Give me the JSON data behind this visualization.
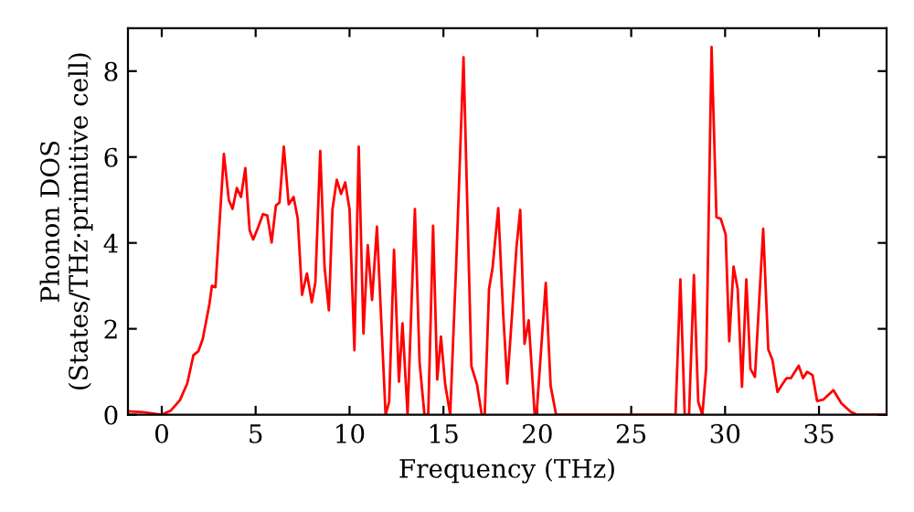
{
  "chart_data": {
    "type": "line",
    "xlabel": "Frequency (THz)",
    "ylabel": "Phonon DOS\n(States/THz·primitive cell)",
    "xlim": [
      -1.8,
      38.6
    ],
    "ylim": [
      0,
      9
    ],
    "xticks": [
      0,
      5,
      10,
      15,
      20,
      25,
      30,
      35
    ],
    "yticks": [
      0,
      2,
      4,
      6,
      8
    ],
    "grid": false,
    "series": [
      {
        "color": "#ff0000",
        "x": [
          -1.78,
          -0.97,
          0,
          0.49,
          0.97,
          1.36,
          1.69,
          1.95,
          2.18,
          2.54,
          2.67,
          2.86,
          3.31,
          3.57,
          3.77,
          4.0,
          4.22,
          4.45,
          4.68,
          4.87,
          5.13,
          5.39,
          5.62,
          5.85,
          6.08,
          6.27,
          6.5,
          6.76,
          7.02,
          7.24,
          7.47,
          7.73,
          7.99,
          8.18,
          8.44,
          8.67,
          8.9,
          9.09,
          9.32,
          9.55,
          9.77,
          10.0,
          10.26,
          10.49,
          10.74,
          10.97,
          11.2,
          11.46,
          11.92,
          12.11,
          12.37,
          12.63,
          12.82,
          13.09,
          13.48,
          13.73,
          13.99,
          14.19,
          14.45,
          14.67,
          14.87,
          15.09,
          15.36,
          15.68,
          16.07,
          16.49,
          16.79,
          17.04,
          17.2,
          17.43,
          17.62,
          17.92,
          18.18,
          18.4,
          18.66,
          18.89,
          19.09,
          19.32,
          19.54,
          19.86,
          19.96,
          20.45,
          20.71,
          21.0,
          27.36,
          27.62,
          27.85,
          28.08,
          28.34,
          28.57,
          28.79,
          28.99,
          29.28,
          29.54,
          29.77,
          30.03,
          30.22,
          30.45,
          30.67,
          30.9,
          31.13,
          31.35,
          31.59,
          32.03,
          32.3,
          32.52,
          32.79,
          33.05,
          33.27,
          33.5,
          33.92,
          34.15,
          34.37,
          34.66,
          34.9,
          35.22,
          35.77,
          36.19,
          36.68,
          37.0,
          38.6
        ],
        "values": [
          0.08,
          0.06,
          0.0,
          0.1,
          0.34,
          0.73,
          1.39,
          1.48,
          1.76,
          2.58,
          3.0,
          2.97,
          6.07,
          5.0,
          4.79,
          5.28,
          5.07,
          5.74,
          4.29,
          4.08,
          4.36,
          4.67,
          4.64,
          4.01,
          4.87,
          4.94,
          6.24,
          4.9,
          5.07,
          4.57,
          2.79,
          3.29,
          2.62,
          3.08,
          6.14,
          3.43,
          2.43,
          4.78,
          5.47,
          5.14,
          5.41,
          4.78,
          1.5,
          6.24,
          1.89,
          3.95,
          2.67,
          4.38,
          0,
          0.3,
          3.84,
          0.77,
          2.13,
          0,
          4.79,
          1.22,
          0,
          0,
          4.4,
          0.82,
          1.82,
          0.72,
          0,
          3.5,
          8.32,
          1.13,
          0.7,
          0,
          0,
          2.93,
          3.43,
          4.81,
          2.37,
          0.73,
          2.37,
          3.9,
          4.77,
          1.65,
          2.2,
          0,
          0,
          3.07,
          0.67,
          0,
          0,
          3.15,
          0,
          0,
          3.25,
          0.3,
          0,
          1.07,
          8.56,
          4.6,
          4.56,
          4.2,
          1.71,
          3.45,
          2.93,
          0.65,
          3.15,
          1.07,
          0.88,
          4.33,
          1.52,
          1.28,
          0.53,
          0.71,
          0.85,
          0.85,
          1.14,
          0.85,
          1.0,
          0.92,
          0.32,
          0.35,
          0.57,
          0.27,
          0.07,
          0,
          0
        ]
      }
    ]
  }
}
